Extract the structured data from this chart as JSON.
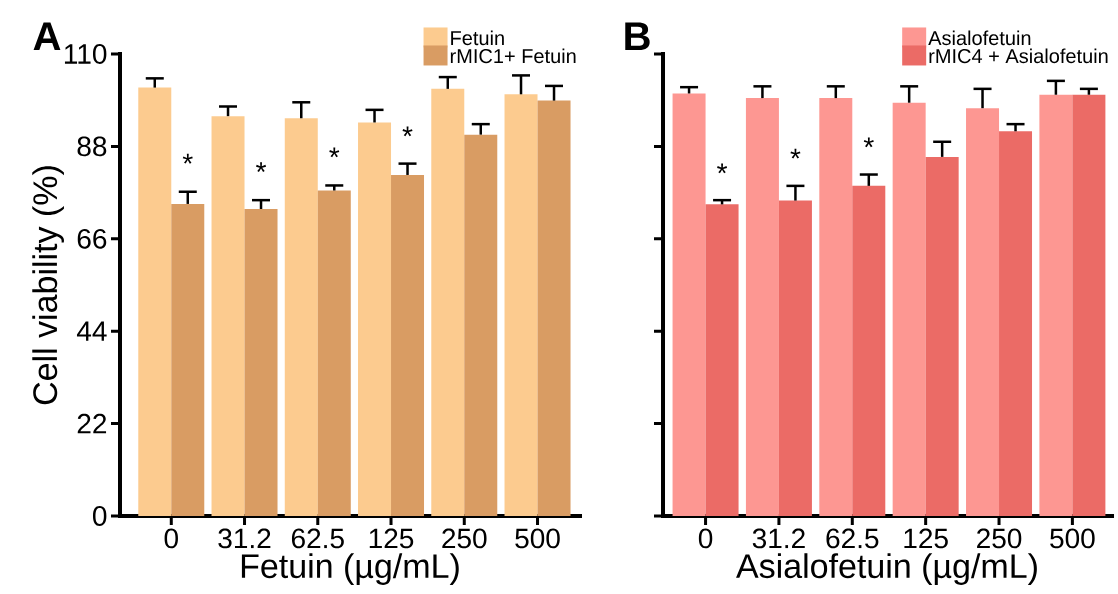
{
  "chart_data": [
    {
      "type": "bar",
      "title": "A",
      "xlabel": "Fetuin (µg/mL)",
      "ylabel": "Cell viability (%)",
      "categories": [
        "0",
        "31.2",
        "62.5",
        "125",
        "250",
        "500"
      ],
      "series": [
        {
          "name": "Fetuin",
          "color": "#fccb8f",
          "values": [
            102.0,
            95.2,
            94.7,
            93.7,
            101.7,
            100.4
          ],
          "errors": [
            2.2,
            2.3,
            3.8,
            3.0,
            2.8,
            4.5
          ]
        },
        {
          "name": "rMIC1+ Fetuin",
          "color": "#d99c63",
          "values": [
            74.3,
            73.1,
            77.5,
            81.2,
            90.8,
            98.9
          ],
          "errors": [
            2.9,
            2.1,
            1.2,
            2.7,
            2.5,
            3.5
          ]
        }
      ],
      "ylim": [
        0,
        110
      ],
      "yticks": [
        0,
        22,
        44,
        66,
        88,
        110
      ],
      "legend": "top right",
      "grid": false,
      "annotations": [
        {
          "text": "*",
          "x": "0",
          "y": 81.6
        },
        {
          "text": "*",
          "x": "31.2",
          "y": 79.6
        },
        {
          "text": "*",
          "x": "62.5",
          "y": 83.1
        },
        {
          "text": "*",
          "x": "125",
          "y": 88.1
        }
      ]
    },
    {
      "type": "bar",
      "title": "B",
      "xlabel": "Asialofetuin (µg/mL)",
      "categories": [
        "0",
        "31.2",
        "62.5",
        "125",
        "250",
        "500"
      ],
      "series": [
        {
          "name": "Asialofetuin",
          "color": "#fd9792",
          "values": [
            100.6,
            99.5,
            99.5,
            98.4,
            97.1,
            100.3
          ],
          "errors": [
            1.5,
            2.8,
            2.8,
            3.9,
            4.6,
            3.3
          ]
        },
        {
          "name": "rMIC4 + Asialofetuin",
          "color": "#eb6b66",
          "values": [
            74.2,
            75.1,
            78.6,
            85.5,
            91.6,
            100.3
          ],
          "errors": [
            1.0,
            3.5,
            2.7,
            3.6,
            1.7,
            1.4
          ]
        }
      ],
      "ylim": [
        0,
        110
      ],
      "yticks": [
        0,
        22,
        44,
        66,
        88,
        110
      ],
      "tick_labels": "x",
      "legend": "top right",
      "grid": false,
      "annotations": [
        {
          "text": "*",
          "x": "0",
          "y": 79.3
        },
        {
          "text": "*",
          "x": "31.2",
          "y": 82.8
        },
        {
          "text": "*",
          "x": "62.5",
          "y": 85.5
        }
      ]
    }
  ]
}
